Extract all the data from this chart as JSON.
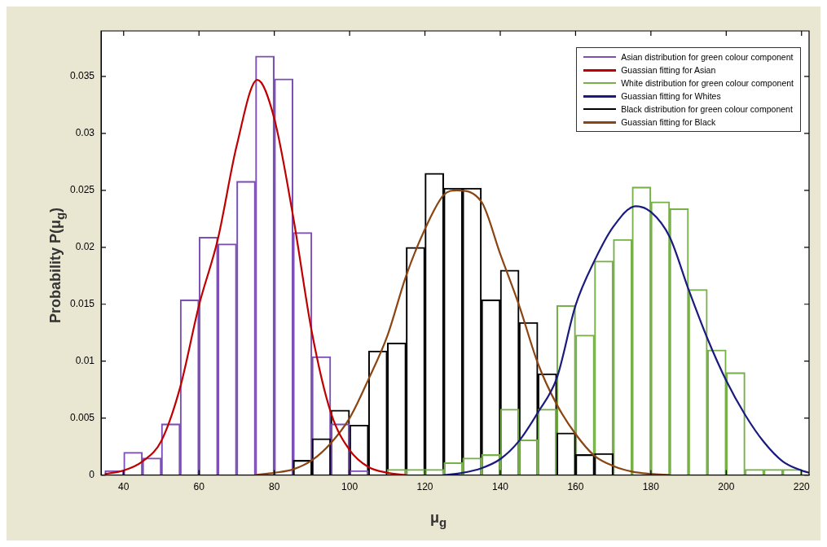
{
  "chart_data": {
    "type": "bar",
    "xlabel": "μ$_{g}$",
    "ylabel": "Probability P(μ$_{g}$)",
    "xlim": [
      34,
      222
    ],
    "ylim": [
      0,
      0.039
    ],
    "xticks": [
      40,
      60,
      80,
      100,
      120,
      140,
      160,
      180,
      200,
      220
    ],
    "yticks": [
      0,
      0.005,
      0.01,
      0.015,
      0.02,
      0.025,
      0.03,
      0.035
    ],
    "grid": false,
    "legend": "top right",
    "series": [
      {
        "name": "Asian distribution for green colour component",
        "color": "#7b4fb5",
        "x": [
          37.5,
          42.5,
          47.5,
          52.5,
          57.5,
          62.5,
          67.5,
          72.5,
          77.5,
          82.5,
          87.5,
          92.5,
          97.5,
          102.5
        ],
        "values": [
          0.0004,
          0.002,
          0.0015,
          0.0045,
          0.0154,
          0.0209,
          0.0203,
          0.0258,
          0.0368,
          0.0348,
          0.0213,
          0.0104,
          0.0045,
          0.0004
        ]
      },
      {
        "name": "Guassian fitting for Asian",
        "type": "line",
        "color": "#c00000",
        "x": [
          35,
          40,
          45,
          50,
          55,
          60,
          65,
          70,
          75.5,
          80,
          85,
          90,
          95,
          100,
          105,
          110,
          115
        ],
        "values": [
          0.0001,
          0.0004,
          0.0012,
          0.003,
          0.0077,
          0.0149,
          0.0207,
          0.0289,
          0.0347,
          0.0313,
          0.0227,
          0.0125,
          0.0055,
          0.0022,
          0.0007,
          0.0002,
          0
        ]
      },
      {
        "name": "White distribution for green colour component",
        "color": "#77b048",
        "x": [
          112.5,
          117.5,
          122.5,
          127.5,
          132.5,
          137.5,
          142.5,
          147.5,
          152.5,
          157.5,
          162.5,
          167.5,
          172.5,
          177.5,
          182.5,
          187.5,
          192.5,
          197.5,
          202.5,
          207.5,
          212.5,
          217.5
        ],
        "values": [
          0.0005,
          0.0005,
          0.0005,
          0.0011,
          0.0015,
          0.0018,
          0.0058,
          0.0031,
          0.0058,
          0.0149,
          0.0123,
          0.0188,
          0.0207,
          0.0253,
          0.024,
          0.0234,
          0.0163,
          0.011,
          0.009,
          0.0005,
          0.0005,
          0.0005
        ]
      },
      {
        "name": "Guassian fitting for Whites",
        "type": "line",
        "color": "#1a1a80",
        "x": [
          125,
          130,
          135,
          140,
          145,
          150,
          155,
          160,
          165,
          170,
          176,
          180,
          185,
          190,
          195,
          200,
          205,
          210,
          215,
          220,
          222
        ],
        "values": [
          0,
          0.0002,
          0.0006,
          0.0014,
          0.003,
          0.0055,
          0.0085,
          0.0149,
          0.0188,
          0.0218,
          0.0236,
          0.0231,
          0.0209,
          0.0163,
          0.012,
          0.0083,
          0.0053,
          0.0029,
          0.0012,
          0.0004,
          0.0002
        ]
      },
      {
        "name": "Black distribution for green colour component",
        "color": "#000000",
        "x": [
          87.5,
          92.5,
          97.5,
          102.5,
          107.5,
          112.5,
          117.5,
          122.5,
          127.5,
          132.5,
          137.5,
          142.5,
          147.5,
          152.5,
          157.5,
          162.5,
          167.5
        ],
        "values": [
          0.0013,
          0.0032,
          0.0057,
          0.0044,
          0.0109,
          0.0116,
          0.02,
          0.0265,
          0.0252,
          0.0252,
          0.0154,
          0.018,
          0.0134,
          0.0089,
          0.0037,
          0.0018,
          0.0019
        ]
      },
      {
        "name": "Guassian fitting for Black",
        "type": "line",
        "color": "#8b4513",
        "x": [
          75,
          80,
          85,
          90,
          95,
          100,
          105,
          110,
          115,
          120,
          125,
          128.5,
          135,
          140,
          145,
          150,
          155,
          160,
          165,
          170,
          175,
          180,
          185
        ],
        "values": [
          0,
          0.0002,
          0.0005,
          0.0013,
          0.0028,
          0.005,
          0.0084,
          0.0122,
          0.0175,
          0.0216,
          0.0246,
          0.025,
          0.024,
          0.0194,
          0.0149,
          0.0098,
          0.0062,
          0.0036,
          0.0017,
          0.0008,
          0.0003,
          0.0001,
          0
        ]
      }
    ]
  }
}
